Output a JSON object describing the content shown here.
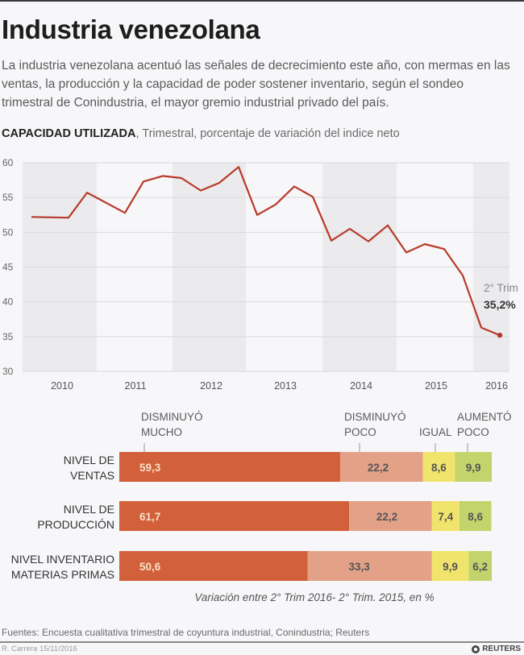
{
  "header": {
    "title": "Industria venezolana",
    "intro": "La industria venezolana acentuó las señales de decrecimiento este año, con mermas en las ventas, la producción y la capacidad de poder sostener inventario, según el sondeo trimestral de Conindustria, el mayor gremio industrial privado del país.",
    "subhead_bold": "CAPACIDAD UTILIZADA",
    "subhead_rest": ", Trimestral, porcentaje de variación del indice neto"
  },
  "colors": {
    "line": "#b83a2a",
    "band": "#ebebee",
    "grid": "#d9d9dd",
    "mucho": "#d2603b",
    "poco": "#e3a288",
    "igual": "#f1e46c",
    "aumento": "#c4d46c"
  },
  "chart_data": [
    {
      "type": "line",
      "title": "CAPACIDAD UTILIZADA",
      "subtitle": "Trimestral, porcentaje de variación del indice neto",
      "xlabel": "",
      "ylabel": "",
      "ylim": [
        30,
        60
      ],
      "yticks": [
        30,
        35,
        40,
        45,
        50,
        55,
        60
      ],
      "grid": true,
      "x_tick_labels": [
        "2010",
        "2011",
        "2012",
        "2013",
        "2014",
        "2015",
        "2016"
      ],
      "x": [
        "2010-T1",
        "2010-T3",
        "2010-T4",
        "2011-T2",
        "2011-T3",
        "2011-T4",
        "2012-T1",
        "2012-T2",
        "2012-T3",
        "2012-T4",
        "2013-T1",
        "2013-T2",
        "2013-T3",
        "2013-T4",
        "2014-T1",
        "2014-T2",
        "2014-T3",
        "2014-T4",
        "2015-T1",
        "2015-T2",
        "2015-T3",
        "2015-T4",
        "2016-T1",
        "2016-T2"
      ],
      "series": [
        {
          "name": "Capacidad utilizada",
          "values": [
            52.2,
            52.1,
            55.7,
            52.8,
            57.3,
            58.1,
            57.8,
            56.0,
            57.1,
            59.4,
            52.5,
            54.0,
            56.6,
            55.1,
            48.8,
            50.5,
            48.7,
            51.0,
            47.1,
            48.3,
            47.6,
            43.8,
            36.3,
            35.2
          ]
        }
      ],
      "annotation": {
        "label": "2° Trim",
        "value": "35,2%"
      }
    },
    {
      "type": "bar",
      "stacked": true,
      "orientation": "horizontal",
      "categories": [
        "NIVEL DE VENTAS",
        "NIVEL DE PRODUCCIÓN",
        "NIVEL INVENTARIO MATERIAS PRIMAS"
      ],
      "category_lines": [
        [
          "NIVEL DE",
          "VENTAS"
        ],
        [
          "NIVEL DE",
          "PRODUCCIÓN"
        ],
        [
          "NIVEL INVENTARIO",
          "MATERIAS PRIMAS"
        ]
      ],
      "legend": [
        {
          "lines": [
            "DISMINUYÓ",
            "MUCHO"
          ]
        },
        {
          "lines": [
            "DISMINUYÓ",
            "POCO"
          ]
        },
        {
          "lines": [
            "IGUAL"
          ]
        },
        {
          "lines": [
            "AUMENTÓ",
            "POCO"
          ]
        }
      ],
      "series": [
        {
          "name": "Disminuyó mucho",
          "values": [
            59.3,
            61.7,
            50.6
          ],
          "labels": [
            "59,3",
            "61,7",
            "50,6"
          ]
        },
        {
          "name": "Disminuyó poco",
          "values": [
            22.2,
            22.2,
            33.3
          ],
          "labels": [
            "22,2",
            "22,2",
            "33,3"
          ]
        },
        {
          "name": "Igual",
          "values": [
            8.6,
            7.4,
            9.9
          ],
          "labels": [
            "8,6",
            "7,4",
            "9,9"
          ]
        },
        {
          "name": "Aumentó poco",
          "values": [
            9.9,
            8.6,
            6.2
          ],
          "labels": [
            "9,9",
            "8,6",
            "6,2"
          ]
        }
      ],
      "xlim": [
        0,
        100
      ],
      "note": "Variación entre 2° Trim 2016- 2° Trim. 2015, en %"
    }
  ],
  "footer": {
    "source": "Fuentes: Encuesta cualitativa trimestral de coyuntura industrial, Conindustria; Reuters",
    "credit": "R. Carrera 15/11/2016",
    "brand": "REUTERS"
  }
}
